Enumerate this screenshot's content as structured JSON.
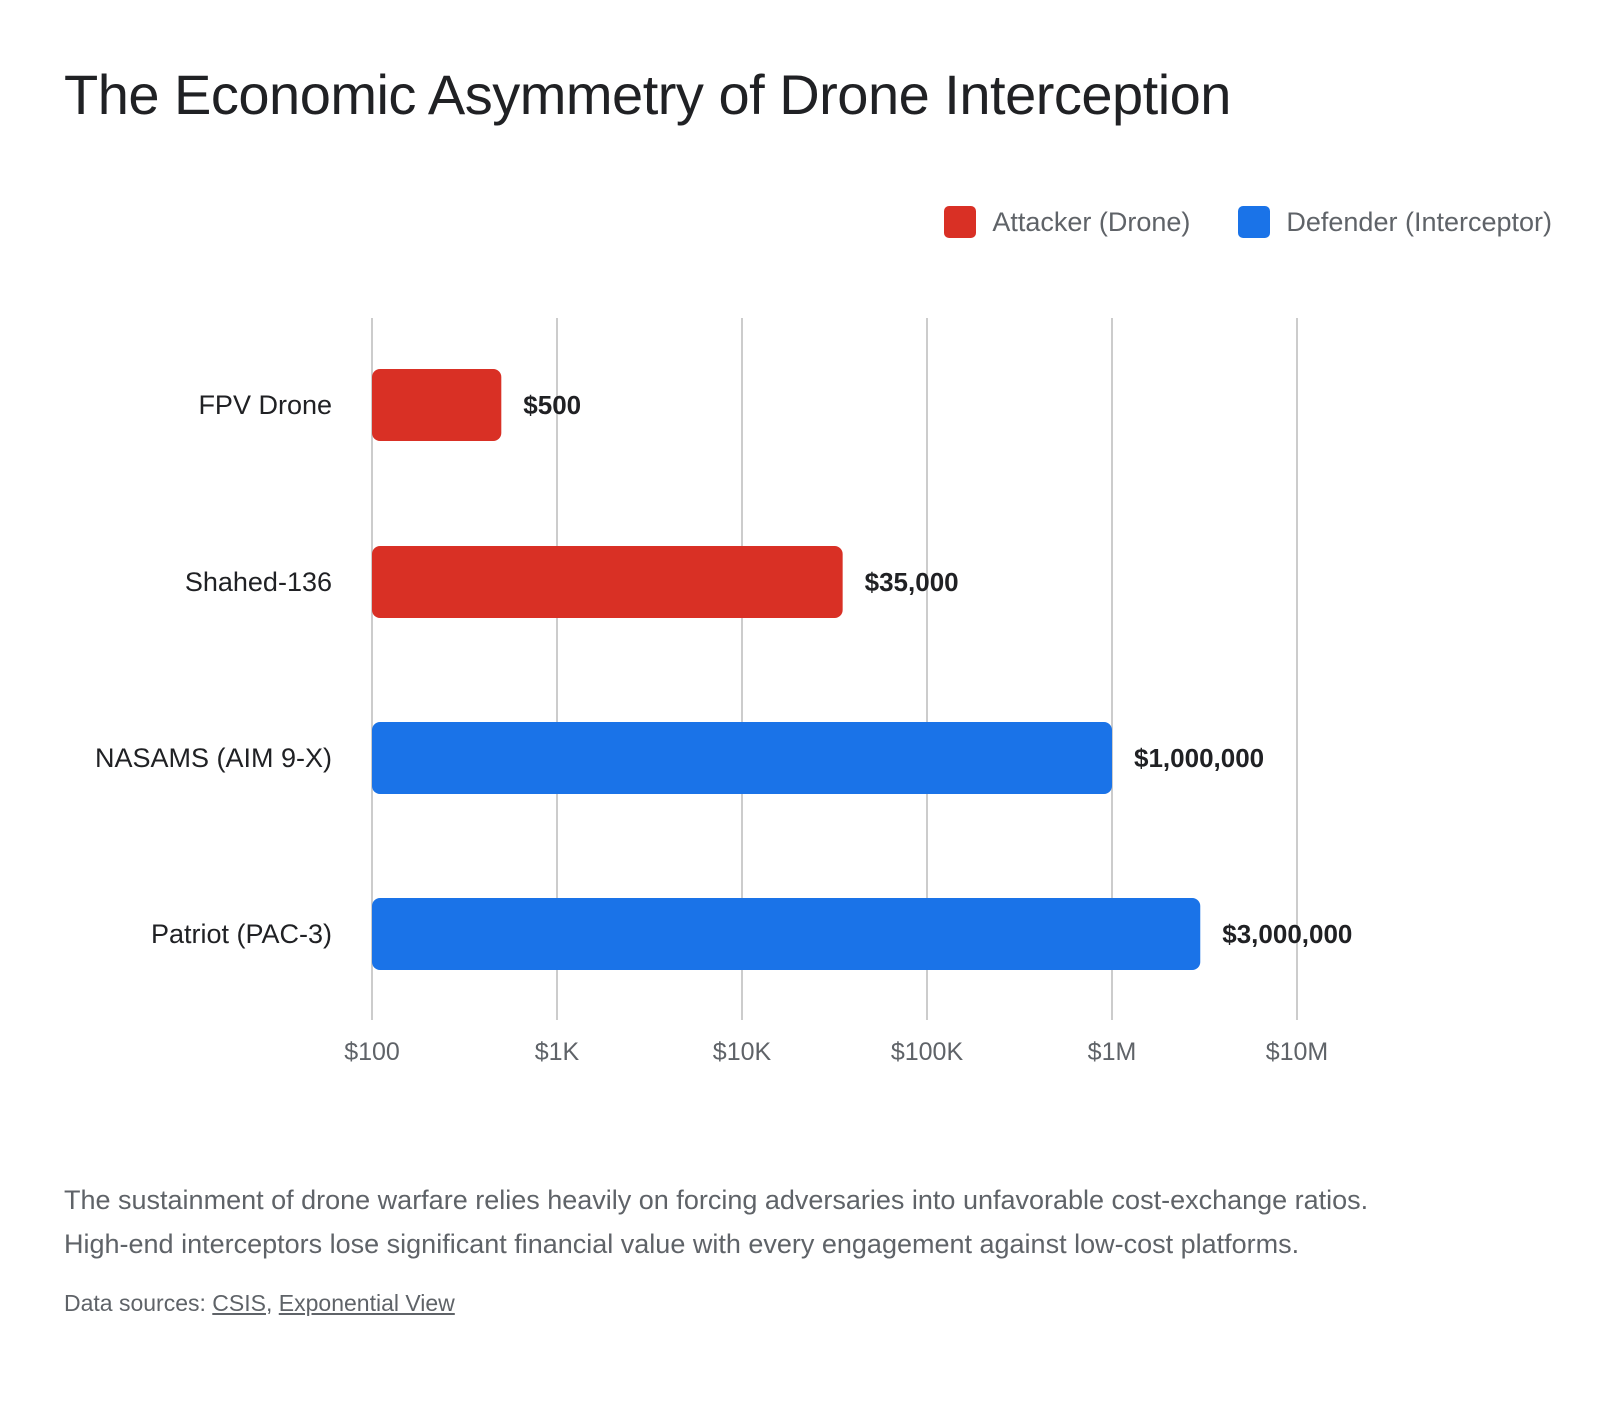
{
  "title": "The Economic Asymmetry of Drone Interception",
  "legend": [
    {
      "label": "Attacker (Drone)",
      "color": "#d93025"
    },
    {
      "label": "Defender (Interceptor)",
      "color": "#1a73e8"
    }
  ],
  "caption": {
    "line1": "The sustainment of drone warfare relies heavily on forcing adversaries into unfavorable cost-exchange ratios.",
    "line2": "High-end interceptors lose significant financial value with every engagement against low-cost platforms."
  },
  "sources": {
    "prefix": "Data sources:",
    "links": [
      "CSIS",
      "Exponential View"
    ],
    "separator": ","
  },
  "chart_data": {
    "type": "bar",
    "orientation": "horizontal",
    "x_scale": "log",
    "xlim": [
      100,
      10000000
    ],
    "grid": true,
    "legend_position": "top-right",
    "categories": [
      "FPV Drone",
      "Shahed-136",
      "NASAMS (AIM 9-X)",
      "Patriot (PAC-3)"
    ],
    "values": [
      500,
      35000,
      1000000,
      3000000
    ],
    "value_labels": [
      "$500",
      "$35,000",
      "$1,000,000",
      "$3,000,000"
    ],
    "series_of_bar": [
      "Attacker (Drone)",
      "Attacker (Drone)",
      "Defender (Interceptor)",
      "Defender (Interceptor)"
    ],
    "x_ticks": [
      100,
      1000,
      10000,
      100000,
      1000000,
      10000000
    ],
    "x_tick_labels": [
      "$100",
      "$1K",
      "$10K",
      "$100K",
      "$1M",
      "$10M"
    ]
  }
}
